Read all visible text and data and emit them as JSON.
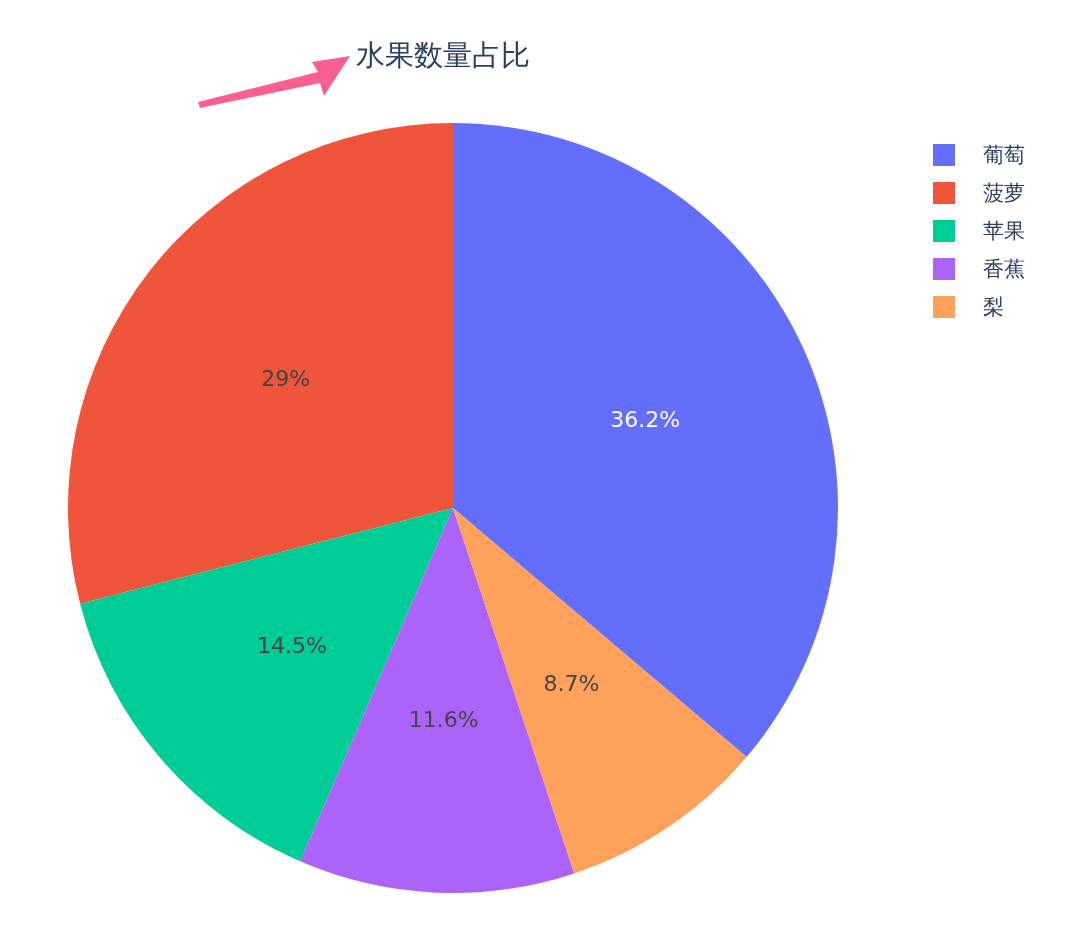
{
  "chart_data": {
    "type": "pie",
    "title": "水果数量占比",
    "categories": [
      "葡萄",
      "菠萝",
      "苹果",
      "香蕉",
      "梨"
    ],
    "values": [
      36.2,
      29,
      14.5,
      11.6,
      8.7
    ],
    "colors": [
      "#636efa",
      "#ef553b",
      "#00cc96",
      "#ab63fa",
      "#ffa15a"
    ],
    "value_labels": [
      "36.2%",
      "29%",
      "14.5%",
      "11.6%",
      "8.7%"
    ],
    "legend": "top right"
  }
}
